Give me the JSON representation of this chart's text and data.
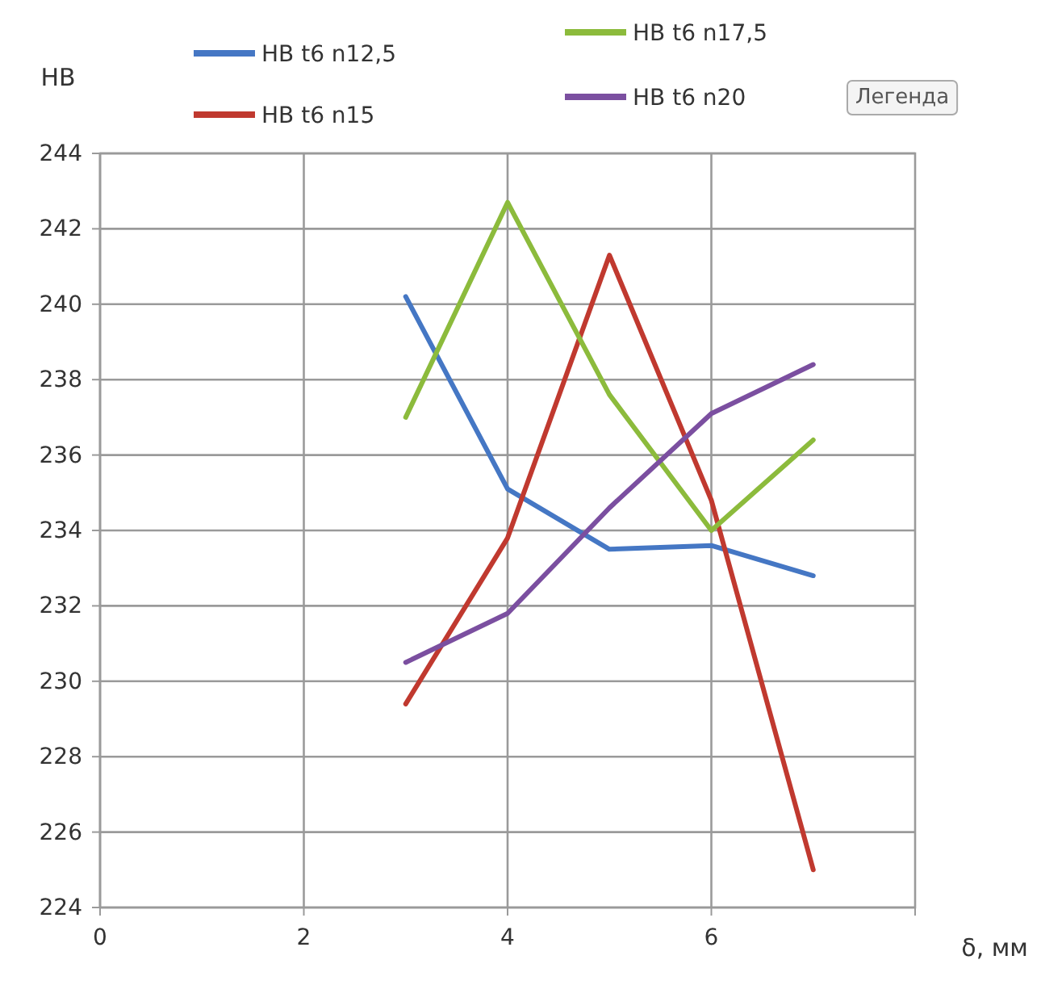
{
  "chart_data": {
    "type": "line",
    "xlabel": "δ, мм",
    "ylabel": "HB",
    "x": [
      3,
      4,
      5,
      6,
      7
    ],
    "series": [
      {
        "name": "HB t6 n12,5",
        "color": "#4577c4",
        "values": [
          240.2,
          235.1,
          233.5,
          233.6,
          232.8
        ]
      },
      {
        "name": "HB t6 n15",
        "color": "#c0392f",
        "values": [
          229.4,
          233.8,
          241.3,
          234.8,
          225.0
        ]
      },
      {
        "name": "HB t6 n17,5",
        "color": "#8cbb3c",
        "values": [
          237.0,
          242.7,
          237.6,
          234.0,
          236.4
        ]
      },
      {
        "name": "HB t6 n20",
        "color": "#7b4fa0",
        "values": [
          230.5,
          231.8,
          234.6,
          237.1,
          238.4
        ]
      }
    ],
    "xlim": [
      0,
      8
    ],
    "xticks": [
      0,
      2,
      4,
      6
    ],
    "ylim": [
      224,
      244
    ],
    "yticks": [
      224,
      226,
      228,
      230,
      232,
      234,
      236,
      238,
      240,
      242,
      244
    ],
    "grid": true,
    "legend": "top",
    "marker": "none",
    "line_style": "solid",
    "annotations": [
      "Легенда"
    ]
  }
}
